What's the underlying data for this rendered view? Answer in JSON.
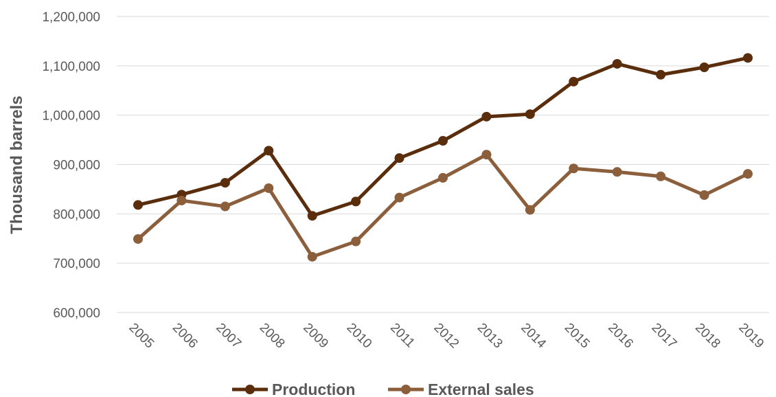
{
  "chart_data": {
    "type": "line",
    "title": "",
    "xlabel": "",
    "ylabel": "Thousand barrels",
    "ylim": [
      600000,
      1200000
    ],
    "yticks": [
      "600,000",
      "700,000",
      "800,000",
      "900,000",
      "1,000,000",
      "1,100,000",
      "1,200,000"
    ],
    "grid": true,
    "legend_position": "bottom",
    "categories": [
      "2005",
      "2006",
      "2007",
      "2008",
      "2009",
      "2010",
      "2011",
      "2012",
      "2013",
      "2014",
      "2015",
      "2016",
      "2017",
      "2018",
      "2019"
    ],
    "series": [
      {
        "name": "Production",
        "color": "#5a2d0c",
        "values": [
          818000,
          839000,
          863000,
          928000,
          796000,
          825000,
          913000,
          948000,
          997000,
          1002000,
          1068000,
          1104000,
          1082000,
          1097000,
          1116000
        ]
      },
      {
        "name": "External sales",
        "color": "#8b5e3c",
        "values": [
          749000,
          827000,
          815000,
          852000,
          713000,
          744000,
          833000,
          873000,
          920000,
          808000,
          892000,
          885000,
          876000,
          838000,
          881000
        ]
      }
    ]
  }
}
